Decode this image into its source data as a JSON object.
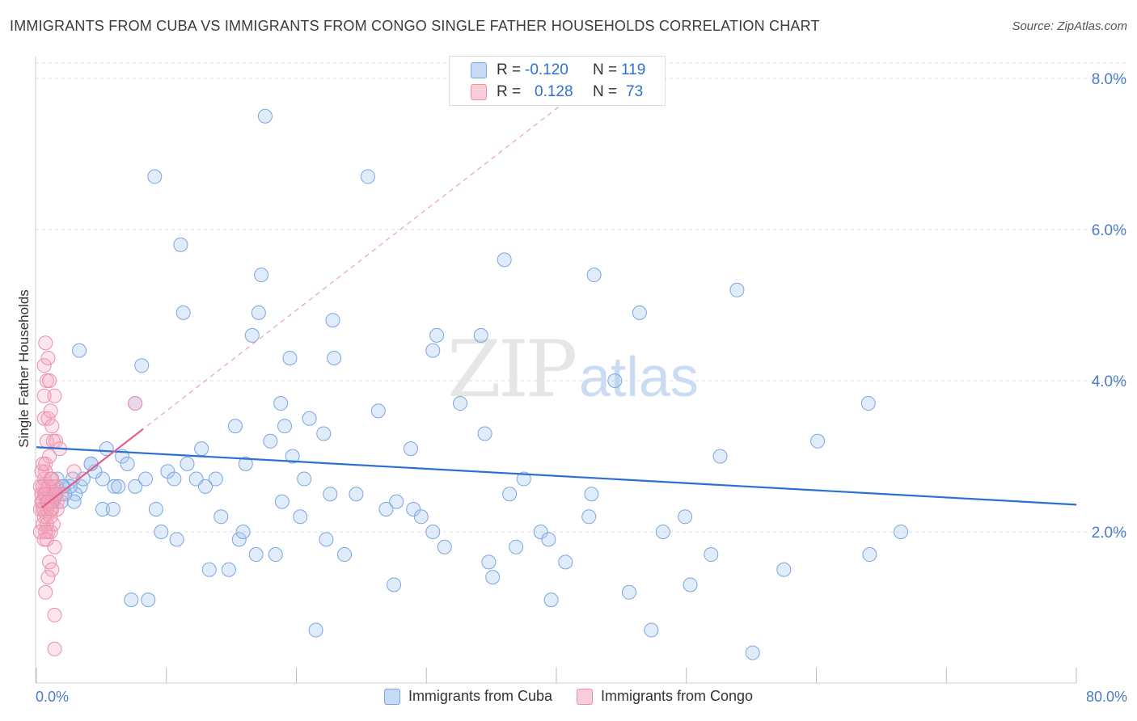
{
  "title": "IMMIGRANTS FROM CUBA VS IMMIGRANTS FROM CONGO SINGLE FATHER HOUSEHOLDS CORRELATION CHART",
  "source": "Source: ZipAtlas.com",
  "watermark": {
    "zip": "ZIP",
    "atlas": "atlas"
  },
  "stats": {
    "r_label": "R =",
    "n_label": "N =",
    "rows": [
      {
        "r": "-0.120",
        "n": "119"
      },
      {
        "r": "0.128",
        "n": "73"
      }
    ]
  },
  "legend": {
    "cuba": "Immigrants from Cuba",
    "congo": "Immigrants from Congo"
  },
  "colors": {
    "cuba": "#a8c8f0",
    "cuba_line": "#2a6fd1",
    "congo": "#f4a9c0",
    "congo_line": "#e0608a",
    "axis_text": "#4a7cc9"
  },
  "chart_data": {
    "type": "scatter",
    "xlabel": "",
    "ylabel": "Single Father Households",
    "xlim": [
      0,
      80
    ],
    "ylim": [
      0,
      8.5
    ],
    "x_tick_labels": [
      "0.0%",
      "80.0%"
    ],
    "y_ticks": [
      2,
      4,
      6,
      8
    ],
    "y_tick_labels": [
      "2.0%",
      "4.0%",
      "6.0%",
      "8.0%"
    ],
    "grid": true,
    "legend_position": "bottom",
    "series": [
      {
        "name": "Immigrants from Cuba",
        "color": "#a8c8f0",
        "trend": {
          "x": [
            0,
            80
          ],
          "y": [
            3.12,
            2.36
          ]
        },
        "points": [
          [
            3.3,
            4.4
          ],
          [
            5.4,
            3.1
          ],
          [
            6.0,
            2.6
          ],
          [
            5.1,
            2.7
          ],
          [
            4.5,
            2.8
          ],
          [
            3.4,
            2.6
          ],
          [
            3.0,
            2.5
          ],
          [
            2.9,
            2.4
          ],
          [
            2.1,
            2.6
          ],
          [
            2.2,
            2.5
          ],
          [
            1.9,
            2.4
          ],
          [
            1.5,
            2.5
          ],
          [
            1.6,
            2.7
          ],
          [
            1.3,
            2.4
          ],
          [
            2.8,
            2.7
          ],
          [
            4.2,
            2.9
          ],
          [
            5.1,
            2.3
          ],
          [
            5.9,
            2.3
          ],
          [
            6.3,
            2.6
          ],
          [
            6.6,
            3.0
          ],
          [
            7.0,
            2.9
          ],
          [
            7.6,
            2.6
          ],
          [
            8.4,
            2.7
          ],
          [
            7.6,
            3.7
          ],
          [
            8.1,
            4.2
          ],
          [
            9.2,
            2.3
          ],
          [
            9.6,
            2.0
          ],
          [
            10.1,
            2.8
          ],
          [
            10.6,
            2.7
          ],
          [
            10.8,
            1.9
          ],
          [
            11.3,
            4.9
          ],
          [
            11.6,
            2.9
          ],
          [
            11.1,
            5.8
          ],
          [
            12.3,
            2.7
          ],
          [
            12.7,
            3.1
          ],
          [
            13.3,
            1.5
          ],
          [
            13.8,
            2.7
          ],
          [
            14.2,
            2.2
          ],
          [
            14.8,
            1.5
          ],
          [
            15.3,
            3.4
          ],
          [
            15.6,
            1.9
          ],
          [
            15.9,
            2.0
          ],
          [
            16.1,
            2.9
          ],
          [
            16.6,
            4.6
          ],
          [
            16.9,
            1.7
          ],
          [
            17.1,
            4.9
          ],
          [
            17.3,
            5.4
          ],
          [
            17.6,
            7.5
          ],
          [
            18.0,
            3.2
          ],
          [
            18.4,
            1.7
          ],
          [
            18.9,
            2.4
          ],
          [
            18.8,
            3.7
          ],
          [
            19.1,
            3.4
          ],
          [
            19.5,
            4.3
          ],
          [
            19.7,
            3.0
          ],
          [
            20.3,
            2.2
          ],
          [
            20.6,
            2.7
          ],
          [
            21.0,
            3.5
          ],
          [
            21.5,
            0.7
          ],
          [
            22.1,
            3.3
          ],
          [
            22.3,
            1.9
          ],
          [
            22.6,
            2.5
          ],
          [
            22.8,
            4.8
          ],
          [
            22.9,
            4.3
          ],
          [
            23.7,
            1.7
          ],
          [
            24.6,
            2.5
          ],
          [
            25.5,
            6.7
          ],
          [
            26.3,
            3.6
          ],
          [
            26.9,
            2.3
          ],
          [
            27.5,
            1.3
          ],
          [
            27.7,
            2.4
          ],
          [
            28.8,
            3.1
          ],
          [
            29.0,
            2.3
          ],
          [
            29.6,
            2.2
          ],
          [
            30.5,
            4.4
          ],
          [
            30.8,
            4.6
          ],
          [
            30.5,
            2.0
          ],
          [
            31.4,
            1.8
          ],
          [
            32.6,
            3.7
          ],
          [
            34.2,
            4.6
          ],
          [
            34.5,
            3.3
          ],
          [
            34.8,
            1.6
          ],
          [
            35.1,
            1.4
          ],
          [
            36.0,
            5.6
          ],
          [
            36.4,
            2.5
          ],
          [
            36.9,
            1.8
          ],
          [
            37.5,
            2.7
          ],
          [
            38.8,
            2.0
          ],
          [
            39.4,
            1.9
          ],
          [
            39.6,
            1.1
          ],
          [
            40.7,
            1.6
          ],
          [
            42.5,
            2.2
          ],
          [
            42.7,
            2.5
          ],
          [
            42.9,
            5.4
          ],
          [
            44.5,
            4.0
          ],
          [
            45.6,
            1.2
          ],
          [
            46.4,
            4.9
          ],
          [
            47.3,
            0.7
          ],
          [
            48.2,
            2.0
          ],
          [
            49.9,
            2.2
          ],
          [
            50.3,
            1.3
          ],
          [
            51.9,
            1.7
          ],
          [
            52.6,
            3.0
          ],
          [
            53.9,
            5.2
          ],
          [
            55.1,
            0.4
          ],
          [
            57.5,
            1.5
          ],
          [
            60.1,
            3.2
          ],
          [
            64.1,
            1.7
          ],
          [
            64.0,
            3.7
          ],
          [
            66.5,
            2.0
          ],
          [
            9.1,
            6.7
          ],
          [
            7.3,
            1.1
          ],
          [
            8.6,
            1.1
          ],
          [
            13.0,
            2.6
          ],
          [
            3.6,
            2.7
          ],
          [
            2.6,
            2.6
          ],
          [
            4.2,
            2.9
          ],
          [
            1.4,
            2.5
          ],
          [
            2.0,
            2.6
          ]
        ]
      },
      {
        "name": "Immigrants from Congo",
        "color": "#f4a9c0",
        "trend": {
          "x": [
            0.4,
            8.2
          ],
          "y": [
            2.32,
            3.36
          ]
        },
        "points": [
          [
            0.5,
            2.4
          ],
          [
            0.7,
            2.6
          ],
          [
            0.9,
            2.5
          ],
          [
            0.6,
            2.3
          ],
          [
            0.8,
            2.2
          ],
          [
            1.1,
            2.4
          ],
          [
            0.4,
            2.5
          ],
          [
            0.6,
            2.7
          ],
          [
            1.0,
            2.6
          ],
          [
            0.7,
            2.8
          ],
          [
            0.5,
            2.1
          ],
          [
            0.9,
            2.0
          ],
          [
            1.2,
            2.3
          ],
          [
            0.3,
            2.6
          ],
          [
            1.4,
            2.5
          ],
          [
            1.6,
            2.4
          ],
          [
            0.7,
            2.9
          ],
          [
            1.0,
            3.0
          ],
          [
            0.8,
            3.2
          ],
          [
            1.3,
            3.2
          ],
          [
            0.6,
            3.5
          ],
          [
            0.9,
            3.5
          ],
          [
            1.2,
            3.4
          ],
          [
            1.5,
            3.2
          ],
          [
            1.8,
            3.1
          ],
          [
            0.6,
            3.8
          ],
          [
            1.1,
            3.6
          ],
          [
            1.4,
            3.8
          ],
          [
            0.8,
            4.0
          ],
          [
            0.6,
            4.2
          ],
          [
            0.9,
            4.3
          ],
          [
            0.7,
            4.5
          ],
          [
            1.0,
            4.0
          ],
          [
            1.0,
            1.6
          ],
          [
            1.2,
            1.5
          ],
          [
            0.9,
            1.4
          ],
          [
            0.7,
            1.2
          ],
          [
            1.4,
            0.9
          ],
          [
            1.4,
            0.45
          ],
          [
            0.6,
            1.9
          ],
          [
            1.1,
            2.0
          ],
          [
            1.4,
            1.8
          ],
          [
            0.8,
            2.1
          ],
          [
            1.3,
            2.1
          ],
          [
            1.6,
            2.3
          ],
          [
            0.5,
            2.3
          ],
          [
            1.1,
            2.2
          ],
          [
            0.3,
            2.0
          ],
          [
            7.6,
            3.7
          ],
          [
            2.9,
            2.8
          ],
          [
            1.5,
            2.6
          ],
          [
            1.2,
            2.7
          ],
          [
            1.9,
            2.5
          ],
          [
            0.4,
            2.8
          ],
          [
            0.8,
            2.4
          ],
          [
            1.0,
            2.5
          ],
          [
            0.6,
            2.5
          ],
          [
            0.9,
            2.6
          ],
          [
            1.3,
            2.6
          ],
          [
            0.5,
            2.6
          ],
          [
            0.7,
            2.5
          ],
          [
            1.1,
            2.7
          ],
          [
            0.4,
            2.4
          ],
          [
            1.2,
            2.4
          ],
          [
            0.8,
            2.3
          ],
          [
            0.6,
            2.2
          ],
          [
            1.5,
            2.5
          ],
          [
            0.9,
            2.4
          ],
          [
            0.3,
            2.3
          ],
          [
            0.5,
            2.9
          ],
          [
            1.1,
            2.3
          ],
          [
            0.7,
            2.0
          ],
          [
            0.8,
            1.9
          ]
        ]
      }
    ]
  }
}
